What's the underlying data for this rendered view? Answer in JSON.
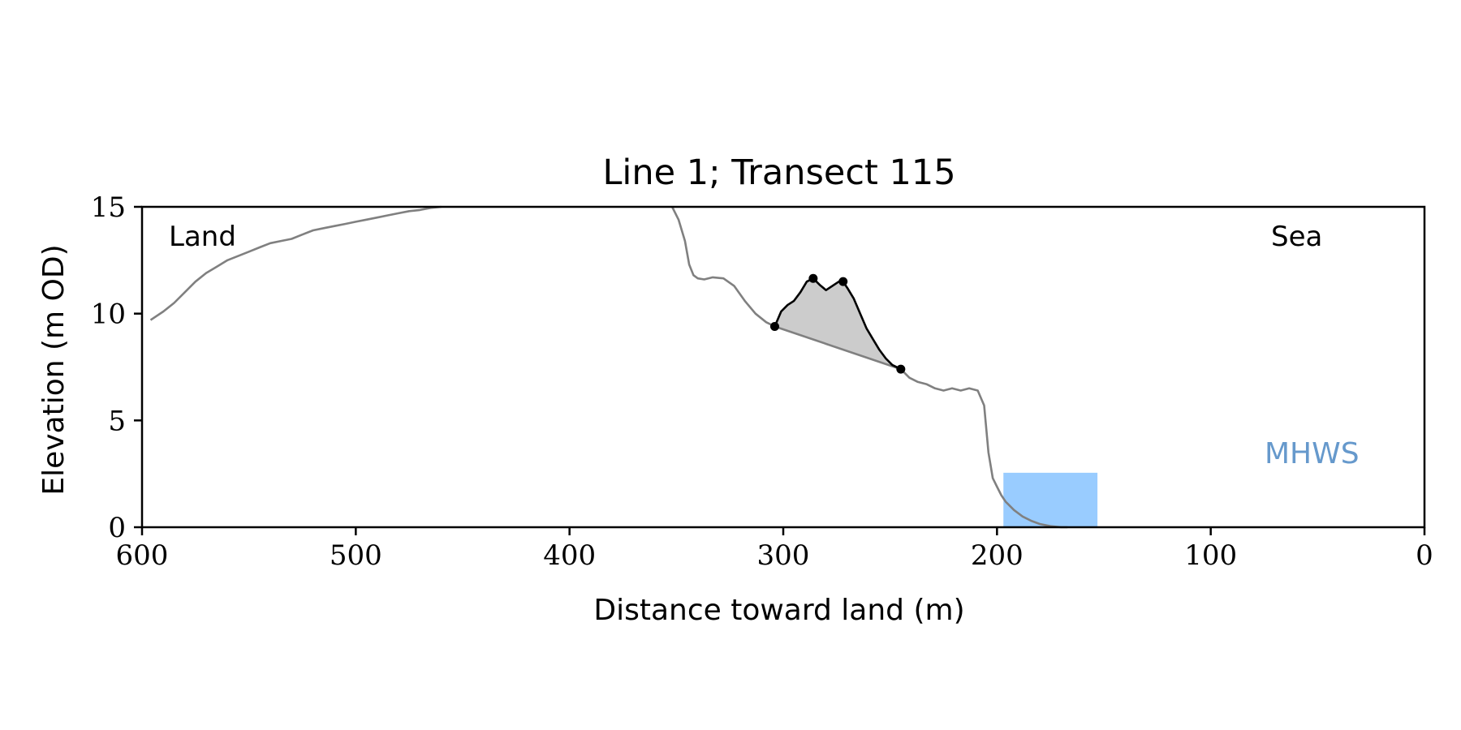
{
  "chart_data": {
    "type": "line",
    "title": "Line 1; Transect 115",
    "xlabel": "Distance toward land (m)",
    "ylabel": "Elevation (m OD)",
    "xlim": [
      600,
      0
    ],
    "ylim": [
      0,
      15
    ],
    "x_ticks": [
      600,
      500,
      400,
      300,
      200,
      100,
      0
    ],
    "y_ticks": [
      0,
      5,
      10,
      15
    ],
    "grid": false,
    "annotations": {
      "land": "Land",
      "sea": "Sea",
      "mhws": "MHWS"
    },
    "colors": {
      "profile": "#808080",
      "dune": "#000000",
      "dune_fill": "#cccccc",
      "mhws_fill": "#99ccff",
      "mhws_text": "#6699cc"
    },
    "series": [
      {
        "role": "profile-landward",
        "x": [
          596,
          590,
          585,
          580,
          575,
          570,
          565,
          560,
          555,
          550,
          545,
          540,
          535,
          530,
          525,
          520,
          515,
          510,
          505,
          500,
          495,
          490,
          485,
          480,
          475,
          470,
          465,
          460
        ],
        "y": [
          9.7,
          10.1,
          10.5,
          11.0,
          11.5,
          11.9,
          12.2,
          12.5,
          12.7,
          12.9,
          13.1,
          13.3,
          13.4,
          13.5,
          13.7,
          13.9,
          14.0,
          14.1,
          14.2,
          14.3,
          14.4,
          14.5,
          14.6,
          14.7,
          14.8,
          14.85,
          14.95,
          15.0
        ]
      },
      {
        "role": "profile-seaward",
        "x": [
          352,
          349,
          346,
          344,
          342,
          340,
          337,
          333,
          328,
          323,
          318,
          313,
          308,
          304,
          245,
          241,
          237,
          233,
          229,
          225,
          221,
          217,
          213,
          209,
          206,
          204,
          202,
          200,
          198,
          196,
          192,
          188,
          184,
          180,
          175,
          170,
          167
        ],
        "y": [
          15.0,
          14.4,
          13.4,
          12.3,
          11.8,
          11.65,
          11.6,
          11.7,
          11.65,
          11.3,
          10.6,
          10.0,
          9.6,
          9.4,
          7.4,
          7.0,
          6.8,
          6.7,
          6.5,
          6.4,
          6.5,
          6.4,
          6.5,
          6.4,
          5.7,
          3.5,
          2.3,
          1.9,
          1.5,
          1.2,
          0.8,
          0.5,
          0.3,
          0.15,
          0.05,
          0.0,
          0.0
        ]
      },
      {
        "role": "dune",
        "x": [
          304,
          301,
          298,
          295,
          292,
          289,
          286,
          283,
          280,
          277,
          274,
          272,
          270,
          267,
          264,
          261,
          258,
          255,
          252,
          249,
          245
        ],
        "y": [
          9.4,
          10.1,
          10.4,
          10.6,
          11.0,
          11.5,
          11.65,
          11.35,
          11.1,
          11.3,
          11.5,
          11.5,
          11.2,
          10.7,
          10.0,
          9.3,
          8.8,
          8.3,
          7.9,
          7.6,
          7.4
        ]
      }
    ],
    "dune_points": {
      "x": [
        304,
        286,
        272,
        245
      ],
      "y": [
        9.4,
        11.65,
        11.5,
        7.4
      ]
    },
    "mhws": {
      "x_start": 197,
      "x_end": 153,
      "level": 2.55
    }
  }
}
